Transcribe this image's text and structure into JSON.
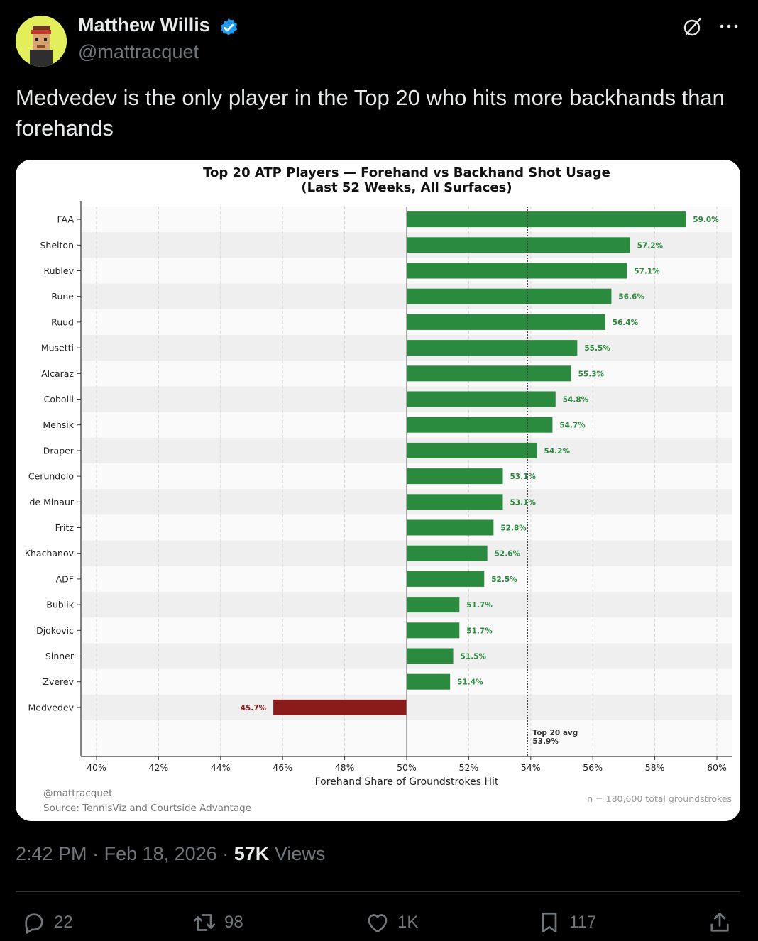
{
  "author": {
    "name": "Matthew Willis",
    "handle": "@mattracquet"
  },
  "tweet": {
    "text": "Medvedev is the only player in the Top 20 who hits more backhands than forehands"
  },
  "chart_data": {
    "type": "bar",
    "orientation": "horizontal",
    "title_line1": "Top 20 ATP Players — Forehand vs Backhand Shot Usage",
    "title_line2": "(Last 52 Weeks, All Surfaces)",
    "xlabel": "Forehand Share of Groundstrokes Hit",
    "xlim": [
      40,
      60
    ],
    "xticks": [
      "40%",
      "42%",
      "44%",
      "46%",
      "48%",
      "50%",
      "52%",
      "54%",
      "56%",
      "58%",
      "60%"
    ],
    "baseline": 50,
    "categories": [
      "FAA",
      "Shelton",
      "Rublev",
      "Rune",
      "Ruud",
      "Musetti",
      "Alcaraz",
      "Cobolli",
      "Mensik",
      "Draper",
      "Cerundolo",
      "de Minaur",
      "Fritz",
      "Khachanov",
      "ADF",
      "Bublik",
      "Djokovic",
      "Sinner",
      "Zverev",
      "Medvedev"
    ],
    "values": [
      59.0,
      57.2,
      57.1,
      56.6,
      56.4,
      55.5,
      55.3,
      54.8,
      54.7,
      54.2,
      53.1,
      53.1,
      52.8,
      52.6,
      52.5,
      51.7,
      51.7,
      51.5,
      51.4,
      45.7
    ],
    "value_labels": [
      "59.0%",
      "57.2%",
      "57.1%",
      "56.6%",
      "56.4%",
      "55.5%",
      "55.3%",
      "54.8%",
      "54.7%",
      "54.2%",
      "53.1%",
      "53.1%",
      "52.8%",
      "52.6%",
      "52.5%",
      "51.7%",
      "51.7%",
      "51.5%",
      "51.4%",
      "45.7%"
    ],
    "avg_value": 53.9,
    "avg_label_line1": "Top 20 avg",
    "avg_label_line2": "53.9%",
    "watermark": "@mattracquet",
    "source": "Source: TennisViz and Courtside Advantage",
    "note": "n = 180,600 total groundstrokes",
    "colors": {
      "above": "#2a8a3e",
      "below": "#8b1a1a"
    }
  },
  "meta": {
    "time": "2:42 PM",
    "date": "Feb 18, 2026",
    "sep": "·",
    "views_count": "57K",
    "views_label": "Views"
  },
  "actions": {
    "replies": "22",
    "reposts": "98",
    "likes": "1K",
    "bookmarks": "117"
  }
}
